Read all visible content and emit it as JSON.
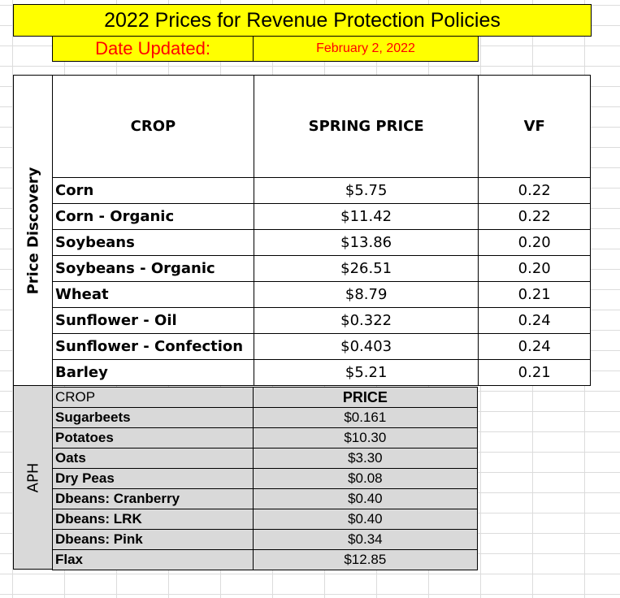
{
  "title": "2022 Prices for Revenue Protection Policies",
  "date_label": "Date Updated:",
  "date_value": "February 2, 2022",
  "price_discovery": {
    "side_label": "Price Discovery",
    "headers": {
      "crop": "CROP",
      "price": "SPRING PRICE",
      "vf": "VF"
    },
    "rows": [
      {
        "crop": "Corn",
        "price": "$5.75",
        "vf": "0.22"
      },
      {
        "crop": "Corn - Organic",
        "price": "$11.42",
        "vf": "0.22"
      },
      {
        "crop": "Soybeans",
        "price": "$13.86",
        "vf": "0.20"
      },
      {
        "crop": "Soybeans - Organic",
        "price": "$26.51",
        "vf": "0.20"
      },
      {
        "crop": "Wheat",
        "price": "$8.79",
        "vf": "0.21"
      },
      {
        "crop": "Sunflower - Oil",
        "price": "$0.322",
        "vf": "0.24"
      },
      {
        "crop": "Sunflower - Confection",
        "price": "$0.403",
        "vf": "0.24"
      },
      {
        "crop": "Barley",
        "price": "$5.21",
        "vf": "0.21"
      }
    ]
  },
  "aph": {
    "side_label": "APH",
    "headers": {
      "crop": "CROP",
      "price": "PRICE"
    },
    "rows": [
      {
        "crop": "Sugarbeets",
        "price": "$0.161"
      },
      {
        "crop": "Potatoes",
        "price": "$10.30"
      },
      {
        "crop": "Oats",
        "price": "$3.30"
      },
      {
        "crop": "Dry Peas",
        "price": "$0.08"
      },
      {
        "crop": "Dbeans: Cranberry",
        "price": "$0.40"
      },
      {
        "crop": "Dbeans: LRK",
        "price": "$0.40"
      },
      {
        "crop": "Dbeans: Pink",
        "price": "$0.34"
      },
      {
        "crop": "Flax",
        "price": "$12.85"
      }
    ]
  },
  "colors": {
    "title_fill": "#ffff00",
    "date_text": "#ff0000",
    "aph_fill": "#d9d9d9",
    "gridline": "#dcdcdc"
  }
}
